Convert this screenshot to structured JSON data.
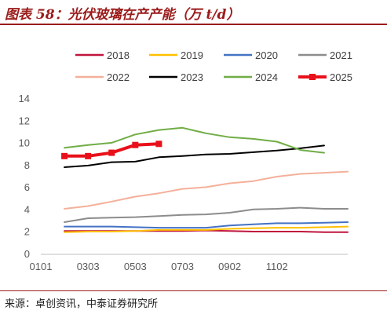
{
  "header": {
    "title": "图表 58：光伏玻璃在产产能（万 t/d）"
  },
  "footer": {
    "source": "来源：卓创资讯，中泰证券研究所"
  },
  "colors": {
    "accent": "#9b1b1b"
  },
  "chart_data": {
    "type": "line",
    "title": "",
    "xlabel": "",
    "ylabel": "",
    "x_tick_labels": [
      "0101",
      "0303",
      "0503",
      "0703",
      "0902",
      "1102"
    ],
    "ylim": [
      0,
      14
    ],
    "y_ticks": [
      0,
      2,
      4,
      6,
      8,
      10,
      12,
      14
    ],
    "grid": false,
    "legend_position": "top",
    "series": [
      {
        "name": "2018",
        "color": "#c0143c",
        "width": 2,
        "markers": false,
        "points": [
          [
            1,
            2.1
          ],
          [
            2,
            2.1
          ],
          [
            3,
            2.1
          ],
          [
            4,
            2.1
          ],
          [
            5,
            2.1
          ],
          [
            6,
            2.1
          ],
          [
            7,
            2.15
          ],
          [
            8,
            2.1
          ],
          [
            9,
            2.05
          ],
          [
            10,
            2.05
          ],
          [
            11,
            2.05
          ],
          [
            12,
            2.0
          ],
          [
            13,
            2.0
          ]
        ]
      },
      {
        "name": "2019",
        "color": "#ffc000",
        "width": 2,
        "markers": false,
        "points": [
          [
            1,
            2.0
          ],
          [
            2,
            2.05
          ],
          [
            3,
            2.05
          ],
          [
            4,
            2.1
          ],
          [
            5,
            2.2
          ],
          [
            6,
            2.2
          ],
          [
            7,
            2.2
          ],
          [
            8,
            2.3
          ],
          [
            9,
            2.35
          ],
          [
            10,
            2.4
          ],
          [
            11,
            2.4
          ],
          [
            12,
            2.45
          ],
          [
            13,
            2.5
          ]
        ]
      },
      {
        "name": "2020",
        "color": "#4472c4",
        "width": 2,
        "markers": false,
        "points": [
          [
            1,
            2.5
          ],
          [
            2,
            2.5
          ],
          [
            3,
            2.5
          ],
          [
            4,
            2.45
          ],
          [
            5,
            2.4
          ],
          [
            6,
            2.4
          ],
          [
            7,
            2.4
          ],
          [
            8,
            2.6
          ],
          [
            9,
            2.7
          ],
          [
            10,
            2.8
          ],
          [
            11,
            2.8
          ],
          [
            12,
            2.85
          ],
          [
            13,
            2.9
          ]
        ]
      },
      {
        "name": "2021",
        "color": "#8c8c8c",
        "width": 2,
        "markers": false,
        "points": [
          [
            1,
            2.9
          ],
          [
            2,
            3.25
          ],
          [
            3,
            3.3
          ],
          [
            4,
            3.35
          ],
          [
            5,
            3.45
          ],
          [
            6,
            3.55
          ],
          [
            7,
            3.6
          ],
          [
            8,
            3.75
          ],
          [
            9,
            4.05
          ],
          [
            10,
            4.1
          ],
          [
            11,
            4.2
          ],
          [
            12,
            4.1
          ],
          [
            13,
            4.1
          ]
        ]
      },
      {
        "name": "2022",
        "color": "#f4b09a",
        "width": 2,
        "markers": false,
        "points": [
          [
            1,
            4.1
          ],
          [
            2,
            4.35
          ],
          [
            3,
            4.75
          ],
          [
            4,
            5.2
          ],
          [
            5,
            5.5
          ],
          [
            6,
            5.9
          ],
          [
            7,
            6.05
          ],
          [
            8,
            6.4
          ],
          [
            9,
            6.6
          ],
          [
            10,
            7.0
          ],
          [
            11,
            7.25
          ],
          [
            12,
            7.35
          ],
          [
            13,
            7.45
          ]
        ]
      },
      {
        "name": "2023",
        "color": "#000000",
        "width": 2,
        "markers": false,
        "points": [
          [
            1,
            7.85
          ],
          [
            2,
            8.0
          ],
          [
            3,
            8.3
          ],
          [
            4,
            8.35
          ],
          [
            5,
            8.75
          ],
          [
            6,
            8.85
          ],
          [
            7,
            9.0
          ],
          [
            8,
            9.05
          ],
          [
            9,
            9.2
          ],
          [
            10,
            9.35
          ],
          [
            11,
            9.55
          ],
          [
            12,
            9.8
          ]
        ]
      },
      {
        "name": "2024",
        "color": "#70ad47",
        "width": 2,
        "markers": false,
        "points": [
          [
            1,
            9.6
          ],
          [
            2,
            9.85
          ],
          [
            3,
            10.05
          ],
          [
            4,
            10.8
          ],
          [
            5,
            11.2
          ],
          [
            6,
            11.4
          ],
          [
            7,
            10.9
          ],
          [
            8,
            10.55
          ],
          [
            9,
            10.4
          ],
          [
            10,
            10.15
          ],
          [
            11,
            9.4
          ],
          [
            12,
            9.15
          ]
        ]
      },
      {
        "name": "2025",
        "color": "#e8101a",
        "width": 4,
        "markers": true,
        "points": [
          [
            1,
            8.85
          ],
          [
            2,
            8.85
          ],
          [
            3,
            9.15
          ],
          [
            4,
            9.85
          ],
          [
            5,
            9.95
          ]
        ]
      }
    ]
  }
}
